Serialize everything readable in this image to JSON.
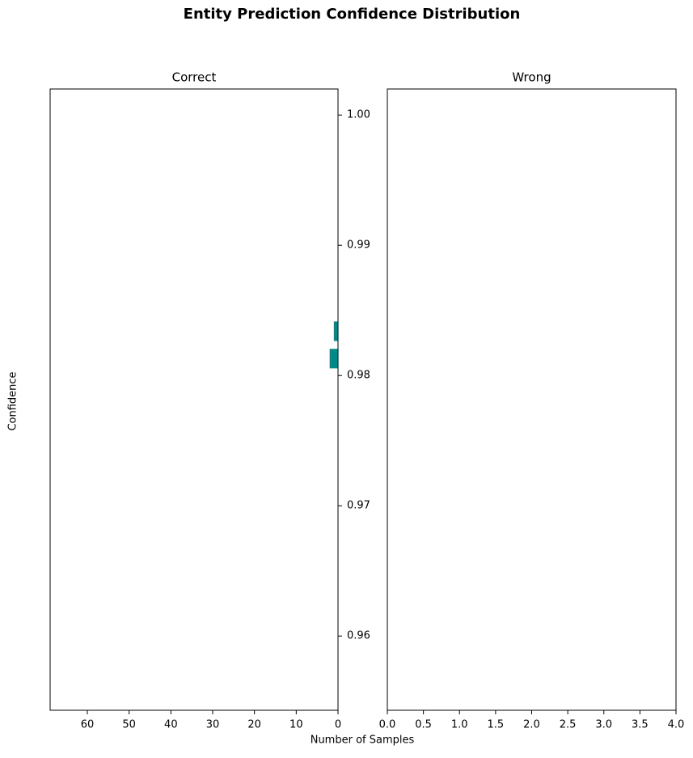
{
  "chart_data": {
    "title": "Entity Prediction Confidence Distribution",
    "xlabel": "Number of Samples",
    "ylabel": "Confidence",
    "ylim": [
      0.9543,
      1.002
    ],
    "yticks": [
      0.96,
      0.97,
      0.98,
      0.99,
      {
        "value": 1,
        "label": "1.00"
      }
    ],
    "panels": [
      {
        "type": "barh",
        "title": "Correct",
        "color": "#008b8b",
        "xlim": [
          68.9,
          0
        ],
        "xticks": [
          60,
          50,
          40,
          30,
          20,
          10,
          0
        ],
        "y": [
          0.9813,
          0.9834
        ],
        "values": [
          2,
          1
        ],
        "bar_height": 0.0015
      },
      {
        "type": "barh",
        "title": "Wrong",
        "color": "#008b8b",
        "xlim": [
          0,
          4
        ],
        "xticks": [
          {
            "value": 0,
            "label": "0.0"
          },
          0.5,
          {
            "value": 1,
            "label": "1.0"
          },
          1.5,
          {
            "value": 2,
            "label": "2.0"
          },
          2.5,
          {
            "value": 3,
            "label": "3.0"
          },
          3.5,
          {
            "value": 4,
            "label": "4.0"
          }
        ],
        "y": [],
        "values": [],
        "bar_height": 0.0015
      }
    ]
  }
}
